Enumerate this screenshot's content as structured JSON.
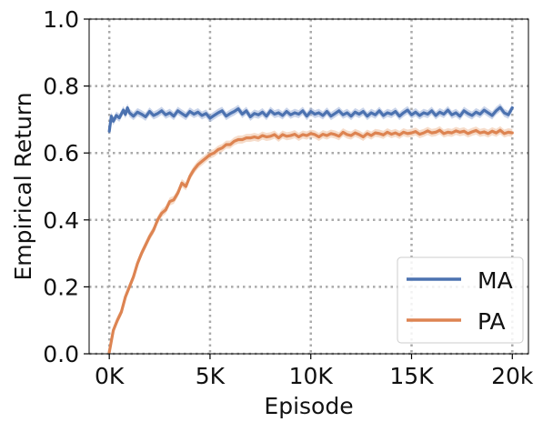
{
  "chart_data": {
    "type": "line",
    "title": "",
    "xlabel": "Episode",
    "ylabel": "Empirical Return",
    "xlim": [
      -1000,
      20800
    ],
    "ylim": [
      0.0,
      1.0
    ],
    "grid": true,
    "grid_style": "dotted",
    "legend_position": "lower-right",
    "xticks": [
      {
        "value": 0,
        "label": "0K"
      },
      {
        "value": 5000,
        "label": "5K"
      },
      {
        "value": 10000,
        "label": "10K"
      },
      {
        "value": 15000,
        "label": "15K"
      },
      {
        "value": 20000,
        "label": "20k"
      }
    ],
    "yticks": [
      {
        "value": 0.0,
        "label": "0.0"
      },
      {
        "value": 0.2,
        "label": "0.2"
      },
      {
        "value": 0.4,
        "label": "0.4"
      },
      {
        "value": 0.6,
        "label": "0.6"
      },
      {
        "value": 0.8,
        "label": "0.8"
      },
      {
        "value": 1.0,
        "label": "1.0"
      }
    ],
    "series": [
      {
        "name": "MA",
        "color": "#4c72b0",
        "band_color": "#a5b8dc",
        "x": [
          0,
          100,
          200,
          350,
          500,
          700,
          800,
          900,
          1000,
          1200,
          1400,
          1600,
          1800,
          2000,
          2200,
          2400,
          2600,
          2800,
          3000,
          3200,
          3400,
          3600,
          3800,
          4000,
          4200,
          4400,
          4600,
          4800,
          5000,
          5200,
          5400,
          5600,
          5800,
          6000,
          6200,
          6400,
          6600,
          6800,
          7000,
          7200,
          7400,
          7600,
          7800,
          8000,
          8200,
          8400,
          8600,
          8800,
          9000,
          9200,
          9400,
          9600,
          9800,
          10000,
          10200,
          10400,
          10600,
          10800,
          11000,
          11200,
          11400,
          11600,
          11800,
          12000,
          12200,
          12400,
          12600,
          12800,
          13000,
          13200,
          13400,
          13600,
          13800,
          14000,
          14200,
          14400,
          14600,
          14800,
          15000,
          15200,
          15400,
          15600,
          15800,
          16000,
          16200,
          16400,
          16600,
          16800,
          17000,
          17200,
          17400,
          17600,
          17800,
          18000,
          18200,
          18400,
          18600,
          18800,
          19000,
          19200,
          19400,
          19600,
          19800,
          20000
        ],
        "y": [
          0.665,
          0.71,
          0.695,
          0.712,
          0.705,
          0.728,
          0.715,
          0.735,
          0.72,
          0.71,
          0.722,
          0.716,
          0.708,
          0.724,
          0.712,
          0.718,
          0.726,
          0.714,
          0.72,
          0.71,
          0.726,
          0.718,
          0.71,
          0.724,
          0.716,
          0.722,
          0.712,
          0.718,
          0.704,
          0.712,
          0.72,
          0.726,
          0.71,
          0.718,
          0.724,
          0.732,
          0.716,
          0.726,
          0.708,
          0.718,
          0.714,
          0.722,
          0.71,
          0.726,
          0.716,
          0.72,
          0.712,
          0.724,
          0.714,
          0.72,
          0.716,
          0.726,
          0.71,
          0.724,
          0.716,
          0.72,
          0.712,
          0.724,
          0.71,
          0.718,
          0.726,
          0.714,
          0.72,
          0.71,
          0.722,
          0.716,
          0.724,
          0.71,
          0.72,
          0.714,
          0.726,
          0.712,
          0.72,
          0.716,
          0.724,
          0.71,
          0.72,
          0.728,
          0.714,
          0.722,
          0.712,
          0.72,
          0.716,
          0.726,
          0.712,
          0.722,
          0.716,
          0.728,
          0.714,
          0.72,
          0.71,
          0.726,
          0.718,
          0.712,
          0.722,
          0.716,
          0.728,
          0.72,
          0.712,
          0.726,
          0.736,
          0.72,
          0.714,
          0.735
        ]
      },
      {
        "name": "PA",
        "color": "#dd8452",
        "band_color": "#f0c4a6",
        "x": [
          0,
          200,
          400,
          600,
          800,
          1000,
          1200,
          1400,
          1600,
          1800,
          2000,
          2200,
          2400,
          2600,
          2800,
          3000,
          3200,
          3400,
          3600,
          3800,
          4000,
          4200,
          4400,
          4600,
          4800,
          5000,
          5200,
          5400,
          5600,
          5800,
          6000,
          6200,
          6400,
          6600,
          6800,
          7000,
          7200,
          7400,
          7600,
          7800,
          8000,
          8200,
          8400,
          8600,
          8800,
          9000,
          9200,
          9400,
          9600,
          9800,
          10000,
          10200,
          10400,
          10600,
          10800,
          11000,
          11200,
          11400,
          11600,
          11800,
          12000,
          12200,
          12400,
          12600,
          12800,
          13000,
          13200,
          13400,
          13600,
          13800,
          14000,
          14200,
          14400,
          14600,
          14800,
          15000,
          15200,
          15400,
          15600,
          15800,
          16000,
          16200,
          16400,
          16600,
          16800,
          17000,
          17200,
          17400,
          17600,
          17800,
          18000,
          18200,
          18400,
          18600,
          18800,
          19000,
          19200,
          19400,
          19600,
          19800,
          20000
        ],
        "y": [
          0.005,
          0.07,
          0.1,
          0.125,
          0.17,
          0.2,
          0.23,
          0.27,
          0.3,
          0.325,
          0.35,
          0.37,
          0.4,
          0.42,
          0.43,
          0.455,
          0.46,
          0.48,
          0.51,
          0.5,
          0.53,
          0.55,
          0.565,
          0.575,
          0.585,
          0.595,
          0.6,
          0.61,
          0.615,
          0.625,
          0.625,
          0.635,
          0.64,
          0.64,
          0.645,
          0.645,
          0.648,
          0.645,
          0.652,
          0.648,
          0.65,
          0.655,
          0.645,
          0.655,
          0.65,
          0.652,
          0.656,
          0.648,
          0.655,
          0.652,
          0.658,
          0.655,
          0.648,
          0.656,
          0.652,
          0.658,
          0.655,
          0.65,
          0.662,
          0.655,
          0.652,
          0.66,
          0.655,
          0.648,
          0.658,
          0.652,
          0.66,
          0.658,
          0.654,
          0.662,
          0.656,
          0.66,
          0.654,
          0.662,
          0.658,
          0.66,
          0.664,
          0.656,
          0.66,
          0.666,
          0.66,
          0.662,
          0.668,
          0.658,
          0.662,
          0.66,
          0.666,
          0.662,
          0.665,
          0.658,
          0.663,
          0.667,
          0.66,
          0.663,
          0.658,
          0.665,
          0.66,
          0.668,
          0.658,
          0.662,
          0.66
        ]
      }
    ]
  }
}
